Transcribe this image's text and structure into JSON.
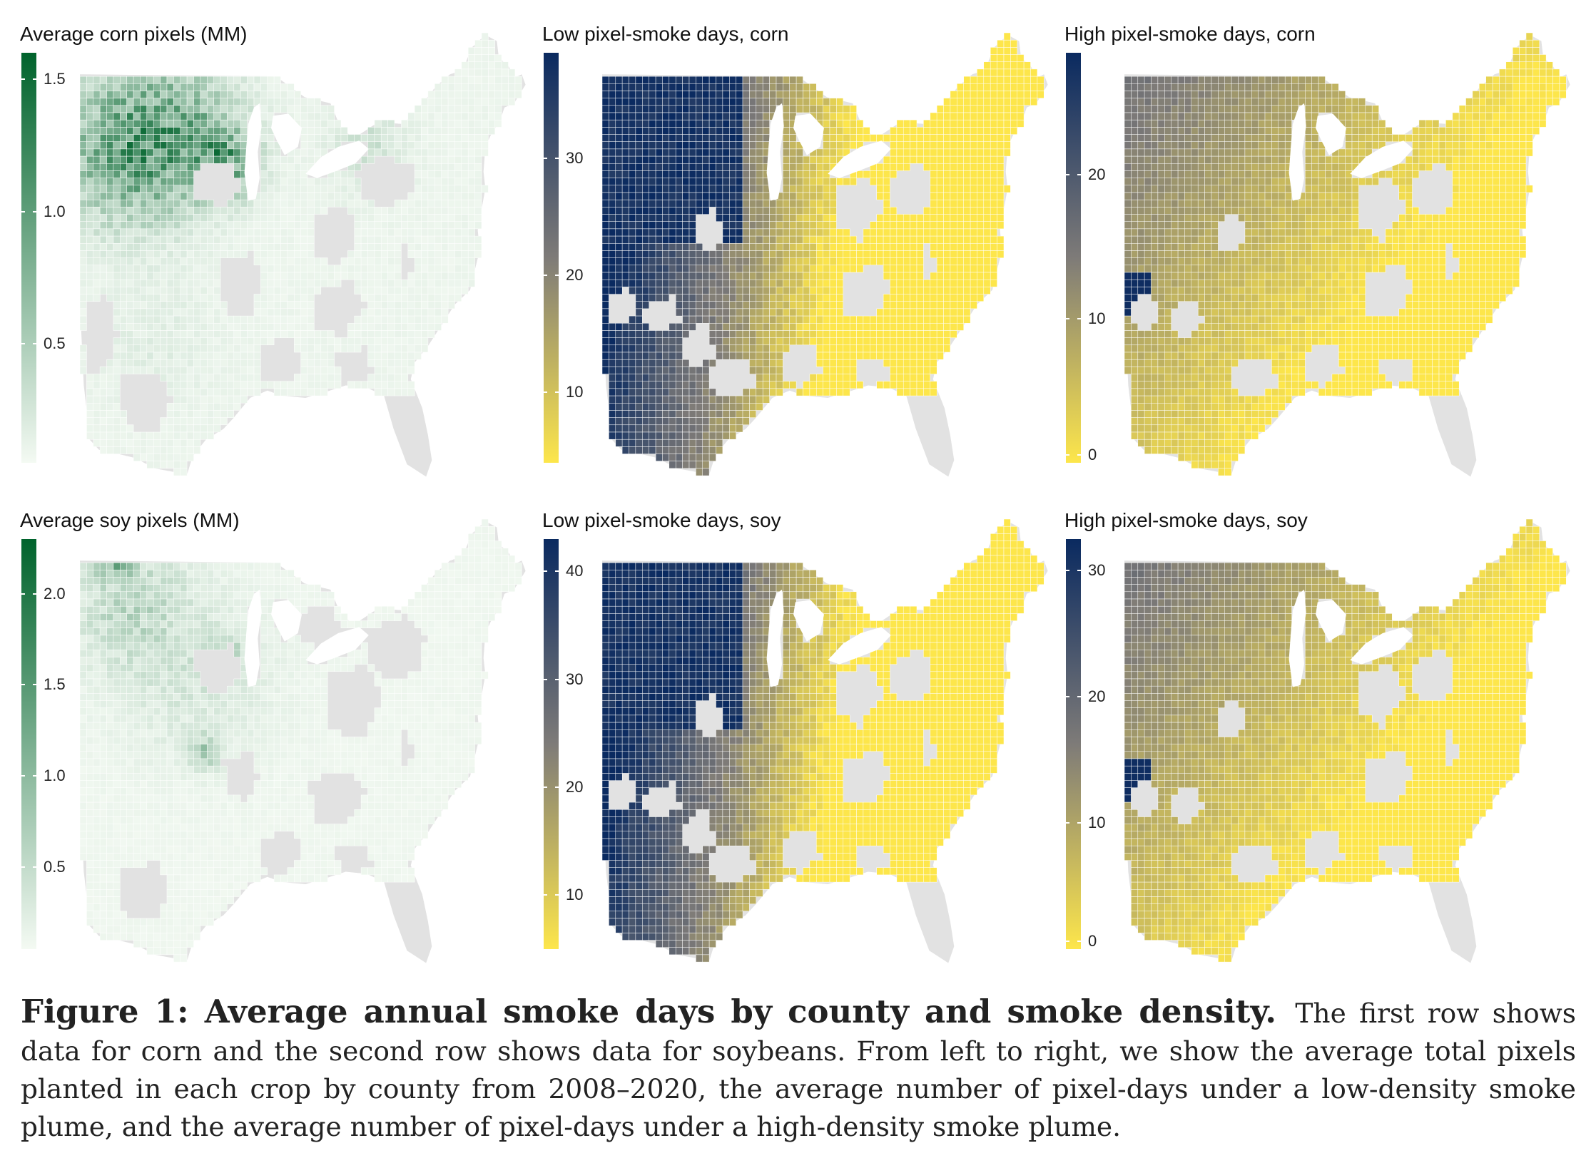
{
  "panels": [
    {
      "title": "Average corn pixels (MM)",
      "palette": "green",
      "range": [
        0.05,
        1.6
      ],
      "ticks": [
        {
          "v": 1.5,
          "label": "1.5"
        },
        {
          "v": 1.0,
          "label": "1.0"
        },
        {
          "v": 0.5,
          "label": "0.5"
        }
      ],
      "variant": "corn-pixels"
    },
    {
      "title": "Low pixel-smoke days, corn",
      "palette": "cividis",
      "range": [
        4,
        39
      ],
      "ticks": [
        {
          "v": 30,
          "label": "30"
        },
        {
          "v": 20,
          "label": "20"
        },
        {
          "v": 10,
          "label": "10"
        }
      ],
      "variant": "smoke-low"
    },
    {
      "title": "High pixel-smoke days, corn",
      "palette": "cividis",
      "range": [
        0,
        28.5
      ],
      "ticks": [
        {
          "v": 20,
          "label": "20"
        },
        {
          "v": 10,
          "label": "10"
        },
        {
          "v": 0,
          "label": "0"
        }
      ],
      "variant": "smoke-high"
    },
    {
      "title": "Average soy pixels (MM)",
      "palette": "green",
      "range": [
        0.05,
        2.3
      ],
      "ticks": [
        {
          "v": 2.0,
          "label": "2.0"
        },
        {
          "v": 1.5,
          "label": "1.5"
        },
        {
          "v": 1.0,
          "label": "1.0"
        },
        {
          "v": 0.5,
          "label": "0.5"
        }
      ],
      "variant": "soy-pixels"
    },
    {
      "title": "Low pixel-smoke days, soy",
      "palette": "cividis",
      "range": [
        5,
        43
      ],
      "ticks": [
        {
          "v": 40,
          "label": "40"
        },
        {
          "v": 30,
          "label": "30"
        },
        {
          "v": 20,
          "label": "20"
        },
        {
          "v": 10,
          "label": "10"
        }
      ],
      "variant": "smoke-low"
    },
    {
      "title": "High pixel-smoke days, soy",
      "palette": "cividis",
      "range": [
        0,
        32.5
      ],
      "ticks": [
        {
          "v": 30,
          "label": "30"
        },
        {
          "v": 20,
          "label": "20"
        },
        {
          "v": 10,
          "label": "10"
        },
        {
          "v": 0,
          "label": "0"
        }
      ],
      "variant": "smoke-high"
    }
  ],
  "colors": {
    "green_low": "#f4faf3",
    "green_high": "#00632c",
    "cividis_low": "#fde64b",
    "cividis_mid": "#7e7b78",
    "cividis_high": "#0a2a60",
    "no_data": "#e2e2e2",
    "county_border": "#ffffff"
  },
  "caption": {
    "lead": "Figure 1:  Average annual smoke days by county and smoke density.",
    "body": "The first row shows data for corn and the second row shows data for soybeans. From left to right, we show the average total pixels planted in each crop by county from 2008–2020, the average number of pixel-days under a low-density smoke plume, and the average number of pixel-days under a high-density smoke plume."
  }
}
